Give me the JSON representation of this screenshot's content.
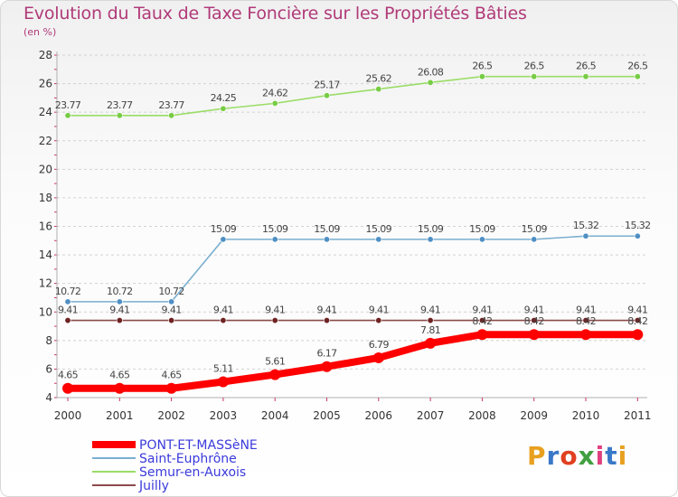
{
  "title": "Evolution du Taux de Taxe Foncière sur les Propriétés Bâties",
  "unit_label": "(en %)",
  "logo": {
    "letters": [
      "P",
      "r",
      "o",
      "x",
      "i",
      "t",
      "i"
    ],
    "colors": [
      "#e8a020",
      "#3a78c8",
      "#e04020",
      "#40a040",
      "#e04080",
      "#3a78c8",
      "#e8a020"
    ]
  },
  "chart_data": {
    "type": "line",
    "title": "Evolution du Taux de Taxe Foncière sur les Propriétés Bâties",
    "ylabel": "(en %)",
    "xlabel": "",
    "ylim": [
      4,
      28
    ],
    "yticks": [
      "4",
      "6",
      "8",
      "10",
      "12",
      "14",
      "16",
      "18",
      "20",
      "22",
      "24",
      "26",
      "28"
    ],
    "x": [
      "2000",
      "2001",
      "2002",
      "2003",
      "2004",
      "2005",
      "2006",
      "2007",
      "2008",
      "2009",
      "2010",
      "2011"
    ],
    "grid": "horizontal dashed",
    "legend": "bottom-left",
    "series": [
      {
        "name": "Semur-en-Auxois",
        "color": "#99dd66",
        "marker": "#77cc44",
        "values": [
          23.77,
          23.77,
          23.77,
          24.25,
          24.62,
          25.17,
          25.62,
          26.08,
          26.5,
          26.5,
          26.5,
          26.5
        ],
        "labels": [
          "23.77",
          "23.77",
          "23.77",
          "24.25",
          "24.62",
          "25.17",
          "25.62",
          "26.08",
          "26.5",
          "26.5",
          "26.5",
          "26.5"
        ]
      },
      {
        "name": "Saint-Euphrône",
        "color": "#7aaed0",
        "marker": "#4f8fc4",
        "values": [
          10.72,
          10.72,
          10.72,
          15.09,
          15.09,
          15.09,
          15.09,
          15.09,
          15.09,
          15.09,
          15.32,
          15.32
        ],
        "labels": [
          "10.72",
          "10.72",
          "10.72",
          "15.09",
          "15.09",
          "15.09",
          "15.09",
          "15.09",
          "15.09",
          "15.09",
          "15.32",
          "15.32"
        ]
      },
      {
        "name": "Juilly",
        "color": "#8c4a4a",
        "marker": "#6e2222",
        "values": [
          9.41,
          9.41,
          9.41,
          9.41,
          9.41,
          9.41,
          9.41,
          9.41,
          9.41,
          9.41,
          9.41,
          9.41
        ],
        "labels": [
          "9.41",
          "9.41",
          "9.41",
          "9.41",
          "9.41",
          "9.41",
          "9.41",
          "9.41",
          "9.41",
          "9.41",
          "9.41",
          "9.41"
        ]
      },
      {
        "name": "PONT-ET-MASSèNE",
        "color": "#ff0000",
        "marker": "#ff0000",
        "values": [
          4.65,
          4.65,
          4.65,
          5.11,
          5.61,
          6.17,
          6.79,
          7.81,
          8.42,
          8.42,
          8.42,
          8.42
        ],
        "labels": [
          "4.65",
          "4.65",
          "4.65",
          "5.11",
          "5.61",
          "6.17",
          "6.79",
          "7.81",
          "8.42",
          "8.42",
          "8.42",
          "8.42"
        ]
      }
    ],
    "legend_order": [
      "PONT-ET-MASSèNE",
      "Saint-Euphrône",
      "Semur-en-Auxois",
      "Juilly"
    ]
  }
}
